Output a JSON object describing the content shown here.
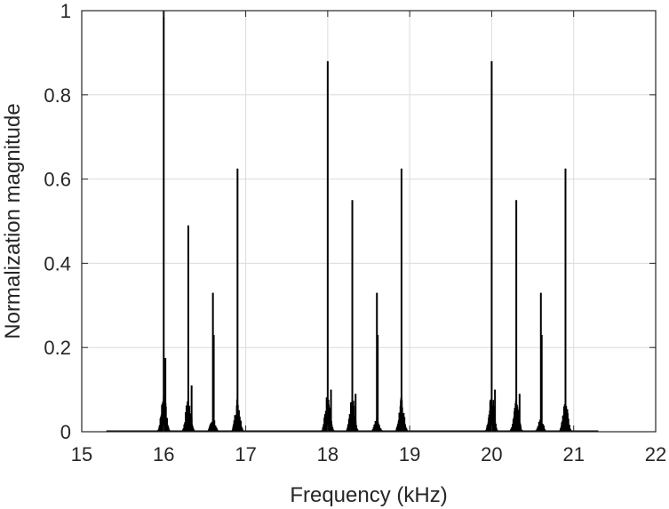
{
  "chart_data": {
    "type": "line",
    "title": "",
    "xlabel": "Frequency (kHz)",
    "ylabel": "Normalization magnitude",
    "xlim": [
      15,
      22
    ],
    "ylim": [
      0,
      1
    ],
    "xticks": [
      15,
      16,
      17,
      18,
      19,
      20,
      21,
      22
    ],
    "yticks": [
      0,
      0.2,
      0.4,
      0.6,
      0.8,
      1
    ],
    "xtick_labels": [
      "15",
      "16",
      "17",
      "18",
      "19",
      "20",
      "21",
      "22"
    ],
    "ytick_labels": [
      "0",
      "0.2",
      "0.4",
      "0.6",
      "0.8",
      "1"
    ],
    "grid": true,
    "line_color": "#000000",
    "series": [
      {
        "peaks": [
          {
            "x": 16.0,
            "y": 1.0
          },
          {
            "x": 16.02,
            "y": 0.175
          },
          {
            "x": 16.3,
            "y": 0.49
          },
          {
            "x": 16.34,
            "y": 0.11
          },
          {
            "x": 16.6,
            "y": 0.33
          },
          {
            "x": 16.61,
            "y": 0.23
          },
          {
            "x": 16.9,
            "y": 0.625
          },
          {
            "x": 18.0,
            "y": 0.88
          },
          {
            "x": 18.04,
            "y": 0.1
          },
          {
            "x": 18.3,
            "y": 0.55
          },
          {
            "x": 18.34,
            "y": 0.09
          },
          {
            "x": 18.6,
            "y": 0.33
          },
          {
            "x": 18.61,
            "y": 0.23
          },
          {
            "x": 18.9,
            "y": 0.625
          },
          {
            "x": 20.0,
            "y": 0.88
          },
          {
            "x": 20.04,
            "y": 0.1
          },
          {
            "x": 20.3,
            "y": 0.55
          },
          {
            "x": 20.34,
            "y": 0.09
          },
          {
            "x": 20.6,
            "y": 0.33
          },
          {
            "x": 20.61,
            "y": 0.23
          },
          {
            "x": 20.9,
            "y": 0.625
          }
        ],
        "sidelobe_clusters": [
          {
            "x": 16.0,
            "y": 0.1
          },
          {
            "x": 16.3,
            "y": 0.095
          },
          {
            "x": 16.6,
            "y": 0.035
          },
          {
            "x": 16.9,
            "y": 0.085
          },
          {
            "x": 18.0,
            "y": 0.1
          },
          {
            "x": 18.3,
            "y": 0.09
          },
          {
            "x": 18.6,
            "y": 0.035
          },
          {
            "x": 18.9,
            "y": 0.085
          },
          {
            "x": 20.0,
            "y": 0.1
          },
          {
            "x": 20.3,
            "y": 0.09
          },
          {
            "x": 20.6,
            "y": 0.035
          },
          {
            "x": 20.9,
            "y": 0.085
          }
        ]
      }
    ]
  }
}
